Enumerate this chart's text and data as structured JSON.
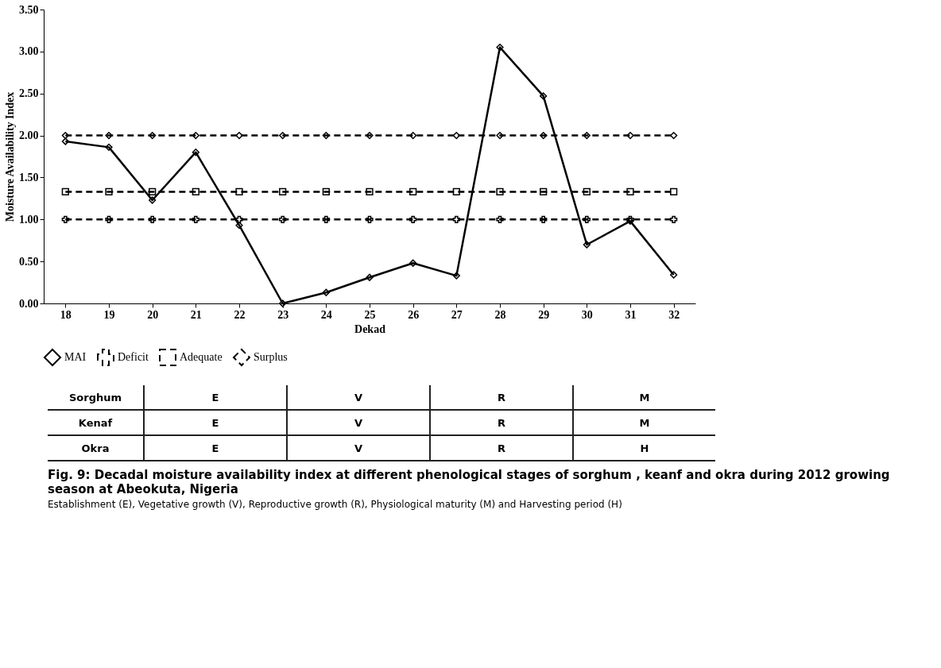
{
  "chart_data": {
    "type": "line",
    "title": "Fig. 9: Decadal moisture availability index at different phenological stages of sorghum , keanf and okra during 2012 growing season at Abeokuta, Nigeria",
    "subtitle": "Establishment (E), Vegetative growth (V), Reproductive growth (R), Physiological maturity (M) and Harvesting period (H)",
    "xlabel": "Dekad",
    "ylabel": "Moisture Availability Index",
    "categories": [
      "18",
      "19",
      "20",
      "21",
      "22",
      "23",
      "24",
      "25",
      "26",
      "27",
      "28",
      "29",
      "30",
      "31",
      "32"
    ],
    "series": [
      {
        "name": "MAI",
        "color": "#000000",
        "marker": "diamond",
        "line_style": "solid",
        "values": [
          1.93,
          1.86,
          1.23,
          1.8,
          0.93,
          0.0,
          0.13,
          0.31,
          0.48,
          0.33,
          3.05,
          2.47,
          0.7,
          0.98,
          0.34
        ]
      },
      {
        "name": "Deficit",
        "color": "#000000",
        "marker": "cross",
        "line_style": "dashed",
        "values": [
          1.0,
          1.0,
          1.0,
          1.0,
          1.0,
          1.0,
          1.0,
          1.0,
          1.0,
          1.0,
          1.0,
          1.0,
          1.0,
          1.0,
          1.0
        ]
      },
      {
        "name": "Adequate",
        "color": "#000000",
        "marker": "square",
        "line_style": "dashed",
        "values": [
          1.33,
          1.33,
          1.33,
          1.33,
          1.33,
          1.33,
          1.33,
          1.33,
          1.33,
          1.33,
          1.33,
          1.33,
          1.33,
          1.33,
          1.33
        ]
      },
      {
        "name": "Surplus",
        "color": "#000000",
        "marker": "diamond",
        "line_style": "dashed",
        "values": [
          2.0,
          2.0,
          2.0,
          2.0,
          2.0,
          2.0,
          2.0,
          2.0,
          2.0,
          2.0,
          2.0,
          2.0,
          2.0,
          2.0,
          2.0
        ]
      }
    ],
    "ylim": [
      0,
      3.5
    ],
    "yticks": [
      {
        "value": 0,
        "label": "0.00"
      },
      {
        "value": 0.5,
        "label": "0.50"
      },
      {
        "value": 1,
        "label": "1.00"
      },
      {
        "value": 1.5,
        "label": "1.50"
      },
      {
        "value": 2,
        "label": "2.00"
      },
      {
        "value": 2.5,
        "label": "2.50"
      },
      {
        "value": 3,
        "label": "3.00"
      },
      {
        "value": 3.5,
        "label": "3.50"
      }
    ],
    "grid": false,
    "legend": "bottom",
    "annotations": [
      "Sorghum",
      "E",
      "V",
      "R",
      "M",
      "Kenaf",
      "E",
      "V",
      "R",
      "M",
      "Okra",
      "E",
      "V",
      "R",
      "H"
    ]
  }
}
